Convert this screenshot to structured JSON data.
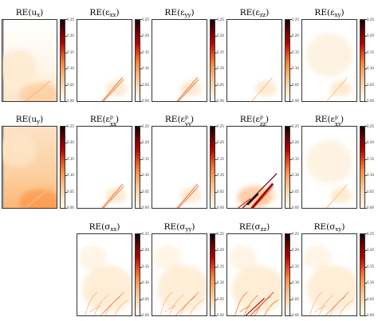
{
  "chart_data": {
    "type": "heatmap",
    "colormap": "white-orange-red-black",
    "colors": [
      "#fffaf2",
      "#fee7c8",
      "#fdbb84",
      "#fc8d3c",
      "#e34a1f",
      "#b30000",
      "#6b0000",
      "#120000"
    ],
    "panels": [
      {
        "row": 0,
        "col": 0,
        "title": {
          "base": "RE(",
          "sym": "u",
          "sub": "x",
          "sup": "",
          "tail": ")"
        },
        "cbar_ticks": [
          "0.25",
          "0.20",
          "0.15",
          "0.10",
          "0.05",
          "0.00"
        ],
        "vmax": 0.25,
        "field": "u"
      },
      {
        "row": 0,
        "col": 1,
        "title": {
          "base": "RE(",
          "sym": "ε",
          "sub": "xx",
          "sup": "",
          "tail": ")"
        },
        "cbar_ticks": [
          "0.25",
          "0.20",
          "0.15",
          "0.10",
          "0.05",
          "0.00"
        ],
        "vmax": 0.25,
        "field": "crack"
      },
      {
        "row": 0,
        "col": 2,
        "title": {
          "base": "RE(",
          "sym": "ε",
          "sub": "yy",
          "sup": "",
          "tail": ")"
        },
        "cbar_ticks": [
          "0.25",
          "0.20",
          "0.15",
          "0.10",
          "0.05",
          "0.00"
        ],
        "vmax": 0.25,
        "field": "crack"
      },
      {
        "row": 0,
        "col": 3,
        "title": {
          "base": "RE(",
          "sym": "ε",
          "sub": "zz",
          "sup": "",
          "tail": ")"
        },
        "cbar_ticks": [
          "0.25",
          "0.20",
          "0.15",
          "0.10",
          "0.05",
          "0.00"
        ],
        "vmax": 0.25,
        "field": "crack-light"
      },
      {
        "row": 0,
        "col": 4,
        "title": {
          "base": "RE(",
          "sym": "ε",
          "sub": "xy",
          "sup": "",
          "tail": ")"
        },
        "cbar_ticks": [
          "0.25",
          "0.20",
          "0.15",
          "0.10",
          "0.05",
          "0.00"
        ],
        "vmax": 0.25,
        "field": "faint"
      },
      {
        "row": 1,
        "col": 0,
        "title": {
          "base": "RE(",
          "sym": "u",
          "sub": "y",
          "sup": "",
          "tail": ")"
        },
        "cbar_ticks": [
          "0.25",
          "0.20",
          "0.15",
          "0.10",
          "0.05",
          "0.00"
        ],
        "vmax": 0.25,
        "field": "u-strong"
      },
      {
        "row": 1,
        "col": 1,
        "title": {
          "base": "RE(",
          "sym": "ε",
          "sub": "xx",
          "sup": "p",
          "tail": ")"
        },
        "cbar_ticks": [
          "0.25",
          "0.20",
          "0.15",
          "0.10",
          "0.05",
          "0.00"
        ],
        "vmax": 0.25,
        "field": "crack"
      },
      {
        "row": 1,
        "col": 2,
        "title": {
          "base": "RE(",
          "sym": "ε",
          "sub": "yy",
          "sup": "p",
          "tail": ")"
        },
        "cbar_ticks": [
          "0.25",
          "0.20",
          "0.15",
          "0.10",
          "0.05",
          "0.00"
        ],
        "vmax": 0.25,
        "field": "crack"
      },
      {
        "row": 1,
        "col": 3,
        "title": {
          "base": "RE(",
          "sym": "ε",
          "sub": "zz",
          "sup": "p",
          "tail": ")"
        },
        "cbar_ticks": [
          "0.25",
          "0.20",
          "0.15",
          "0.10",
          "0.05",
          "0.00"
        ],
        "vmax": 0.25,
        "field": "crack-strong"
      },
      {
        "row": 1,
        "col": 4,
        "title": {
          "base": "RE(",
          "sym": "ε",
          "sub": "xy",
          "sup": "p",
          "tail": ")"
        },
        "cbar_ticks": [
          "0.25",
          "0.20",
          "0.15",
          "0.10",
          "0.05",
          "0.00"
        ],
        "vmax": 0.25,
        "field": "faint"
      },
      {
        "row": 2,
        "col": 1,
        "title": {
          "base": "RE(",
          "sym": "σ",
          "sub": "xx",
          "sup": "",
          "tail": ")"
        },
        "cbar_ticks": [
          "0.25",
          "0.20",
          "0.15",
          "0.10",
          "0.05",
          "0.00"
        ],
        "vmax": 0.25,
        "field": "stress"
      },
      {
        "row": 2,
        "col": 2,
        "title": {
          "base": "RE(",
          "sym": "σ",
          "sub": "yy",
          "sup": "",
          "tail": ")"
        },
        "cbar_ticks": [
          "0.25",
          "0.20",
          "0.15",
          "0.10",
          "0.05",
          "0.00"
        ],
        "vmax": 0.25,
        "field": "stress"
      },
      {
        "row": 2,
        "col": 3,
        "title": {
          "base": "RE(",
          "sym": "σ",
          "sub": "zz",
          "sup": "",
          "tail": ")"
        },
        "cbar_ticks": [
          "0.25",
          "0.20",
          "0.15",
          "0.10",
          "0.05",
          "0.00"
        ],
        "vmax": 0.25,
        "field": "stress-strong"
      },
      {
        "row": 2,
        "col": 4,
        "title": {
          "base": "RE(",
          "sym": "σ",
          "sub": "xy",
          "sup": "",
          "tail": ")"
        },
        "cbar_ticks": [
          "0.25",
          "0.20",
          "0.15",
          "0.10",
          "0.05",
          "0.00"
        ],
        "vmax": 0.25,
        "field": "stress"
      }
    ]
  }
}
